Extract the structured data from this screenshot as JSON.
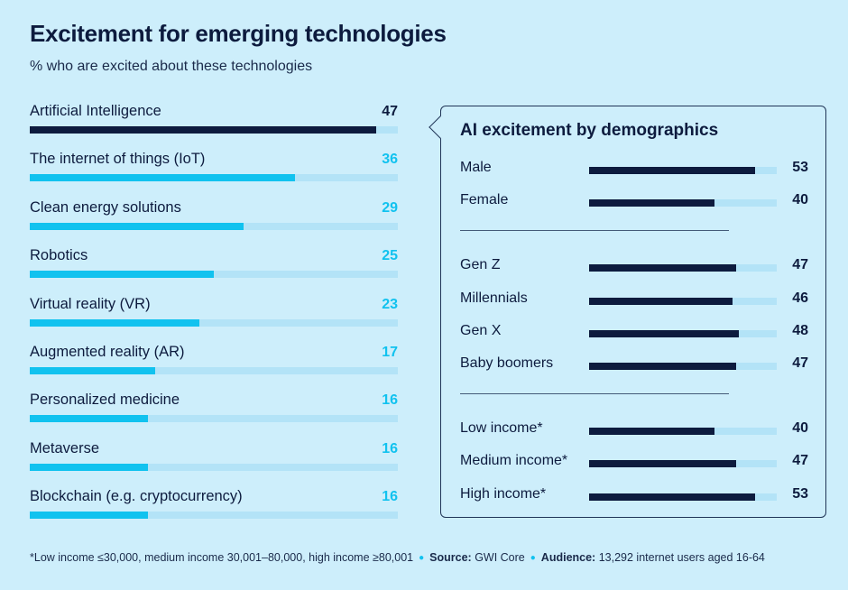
{
  "header": {
    "title": "Excitement for emerging technologies",
    "subtitle": "% who are excited about these technologies"
  },
  "colors": {
    "background": "#cdeefb",
    "highlight_bar": "#0d1b3e",
    "accent_bar": "#11c2ef",
    "track": "#b3e3f7",
    "accent_text": "#11c2ef"
  },
  "chart_data": [
    {
      "type": "bar",
      "orientation": "horizontal",
      "title": "Excitement for emerging technologies",
      "subtitle": "% who are excited about these technologies",
      "xlim": [
        0,
        50
      ],
      "categories": [
        "Artificial Intelligence",
        "The internet of things (IoT)",
        "Clean energy solutions",
        "Robotics",
        "Virtual reality (VR)",
        "Augmented reality (AR)",
        "Personalized medicine",
        "Metaverse",
        "Blockchain (e.g. cryptocurrency)"
      ],
      "values": [
        47,
        36,
        29,
        25,
        23,
        17,
        16,
        16,
        16
      ],
      "highlight_index": 0,
      "grid": false
    },
    {
      "type": "bar",
      "orientation": "horizontal",
      "title": "AI excitement by demographics",
      "xlim": [
        0,
        60
      ],
      "groups": [
        {
          "categories": [
            "Male",
            "Female"
          ],
          "values": [
            53,
            40
          ]
        },
        {
          "categories": [
            "Gen Z",
            "Millennials",
            "Gen X",
            "Baby boomers"
          ],
          "values": [
            47,
            46,
            48,
            47
          ]
        },
        {
          "categories": [
            "Low income*",
            "Medium income*",
            "High income*"
          ],
          "values": [
            40,
            47,
            53
          ]
        }
      ],
      "grid": false
    }
  ],
  "footer": {
    "note": "*Low income ≤30,000, medium income 30,001–80,000, high income ≥80,001",
    "source_label": "Source:",
    "source_value": "GWI Core",
    "audience_label": "Audience:",
    "audience_value": "13,292 internet users aged 16-64"
  }
}
